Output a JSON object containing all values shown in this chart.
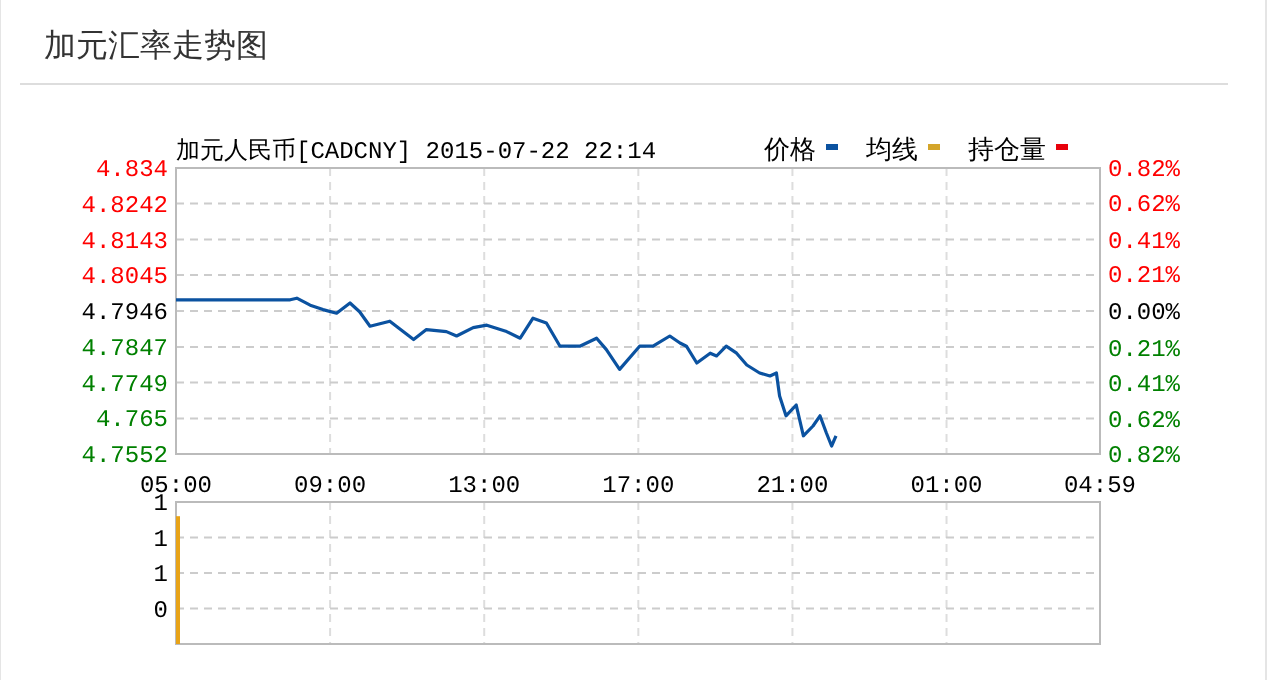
{
  "chart_data": [
    {
      "type": "line",
      "title": "加元汇率走势图",
      "subtitle": "加元人民币[CADCNY] 2015-07-22 22:14",
      "legend": "top right",
      "grid": true,
      "xlim": [
        "2015-07-22T05:00",
        "2015-07-23T04:59"
      ],
      "xticks": [
        {
          "value": "2015-07-22T05:00",
          "label": "05:00"
        },
        {
          "value": "2015-07-22T09:00",
          "label": "09:00"
        },
        {
          "value": "2015-07-22T13:00",
          "label": "13:00"
        },
        {
          "value": "2015-07-22T17:00",
          "label": "17:00"
        },
        {
          "value": "2015-07-22T21:00",
          "label": "21:00"
        },
        {
          "value": "2015-07-23T01:00",
          "label": "01:00"
        },
        {
          "value": "2015-07-23T04:59",
          "label": "04:59"
        }
      ],
      "ylim": [
        4.7552,
        4.834
      ],
      "yticks": [
        4.7552,
        4.765,
        4.7749,
        4.7847,
        4.7946,
        4.8045,
        4.8143,
        4.8242,
        4.834
      ],
      "y2lim": [
        -0.82,
        0.82
      ],
      "y2ticks": [
        {
          "value": -0.82,
          "label": "0.82%"
        },
        {
          "value": -0.62,
          "label": "0.62%"
        },
        {
          "value": -0.41,
          "label": "0.41%"
        },
        {
          "value": -0.21,
          "label": "0.21%"
        },
        {
          "value": 0,
          "label": "0.00%"
        },
        {
          "value": 0.21,
          "label": "0.21%"
        },
        {
          "value": 0.41,
          "label": "0.41%"
        },
        {
          "value": 0.62,
          "label": "0.62%"
        },
        {
          "value": 0.82,
          "label": "0.82%"
        }
      ],
      "series": [
        {
          "name": "价格",
          "color": "#0b52a0",
          "x": [
            "2015-07-22T05:00",
            "2015-07-22T07:58",
            "2015-07-22T08:08",
            "2015-07-22T08:29",
            "2015-07-22T08:49",
            "2015-07-22T09:10",
            "2015-07-22T09:31",
            "2015-07-22T09:46",
            "2015-07-22T10:02",
            "2015-07-22T10:33",
            "2015-07-22T11:10",
            "2015-07-22T11:30",
            "2015-07-22T12:01",
            "2015-07-22T12:17",
            "2015-07-22T12:43",
            "2015-07-22T13:04",
            "2015-07-22T13:35",
            "2015-07-22T13:56",
            "2015-07-22T14:16",
            "2015-07-22T14:37",
            "2015-07-22T14:58",
            "2015-07-22T15:29",
            "2015-07-22T15:55",
            "2015-07-22T16:10",
            "2015-07-22T16:31",
            "2015-07-22T17:02",
            "2015-07-22T17:23",
            "2015-07-22T17:49",
            "2015-07-22T18:05",
            "2015-07-22T18:15",
            "2015-07-22T18:31",
            "2015-07-22T18:52",
            "2015-07-22T19:02",
            "2015-07-22T19:17",
            "2015-07-22T19:33",
            "2015-07-22T19:49",
            "2015-07-22T20:09",
            "2015-07-22T20:25",
            "2015-07-22T20:35",
            "2015-07-22T20:40",
            "2015-07-22T20:50",
            "2015-07-22T21:06",
            "2015-07-22T21:17",
            "2015-07-22T21:32",
            "2015-07-22T21:43",
            "2015-07-22T21:53",
            "2015-07-22T22:01",
            "2015-07-22T22:08"
          ],
          "values": [
            4.7977,
            4.7977,
            4.7981,
            4.7962,
            4.795,
            4.794,
            4.7968,
            4.7944,
            4.7904,
            4.7918,
            4.7867,
            4.7895,
            4.7889,
            4.7877,
            4.79,
            4.7907,
            4.7889,
            4.7871,
            4.7926,
            4.7913,
            4.7849,
            4.7849,
            4.7871,
            4.784,
            4.7785,
            4.7849,
            4.7849,
            4.7877,
            4.7858,
            4.7849,
            4.7803,
            4.783,
            4.7822,
            4.7849,
            4.783,
            4.7797,
            4.7775,
            4.7767,
            4.7775,
            4.7712,
            4.7657,
            4.7687,
            4.7602,
            4.7629,
            4.7657,
            4.761,
            4.7574,
            4.7602
          ]
        },
        {
          "name": "均线",
          "color": "#d4a52a"
        },
        {
          "name": "持仓量",
          "color": "#e8000b"
        }
      ]
    },
    {
      "type": "bar",
      "tick_labels": "y",
      "grid": true,
      "xlim": [
        "2015-07-22T05:00",
        "2015-07-23T04:59"
      ],
      "xticks": [
        "2015-07-22T05:00",
        "2015-07-22T09:00",
        "2015-07-22T13:00",
        "2015-07-22T17:00",
        "2015-07-22T21:00",
        "2015-07-23T01:00",
        "2015-07-23T04:59"
      ],
      "ylim": [
        -0.5,
        1.5
      ],
      "yticks": [
        {
          "value": 0,
          "label": "0"
        },
        {
          "value": 0.5,
          "label": "1"
        },
        {
          "value": 1,
          "label": "1"
        },
        {
          "value": 1.5,
          "label": "1"
        }
      ],
      "x": [
        "2015-07-22T05:00"
      ],
      "base": [
        -0.5
      ],
      "values": [
        1.8
      ],
      "color": "#e8a317"
    }
  ]
}
